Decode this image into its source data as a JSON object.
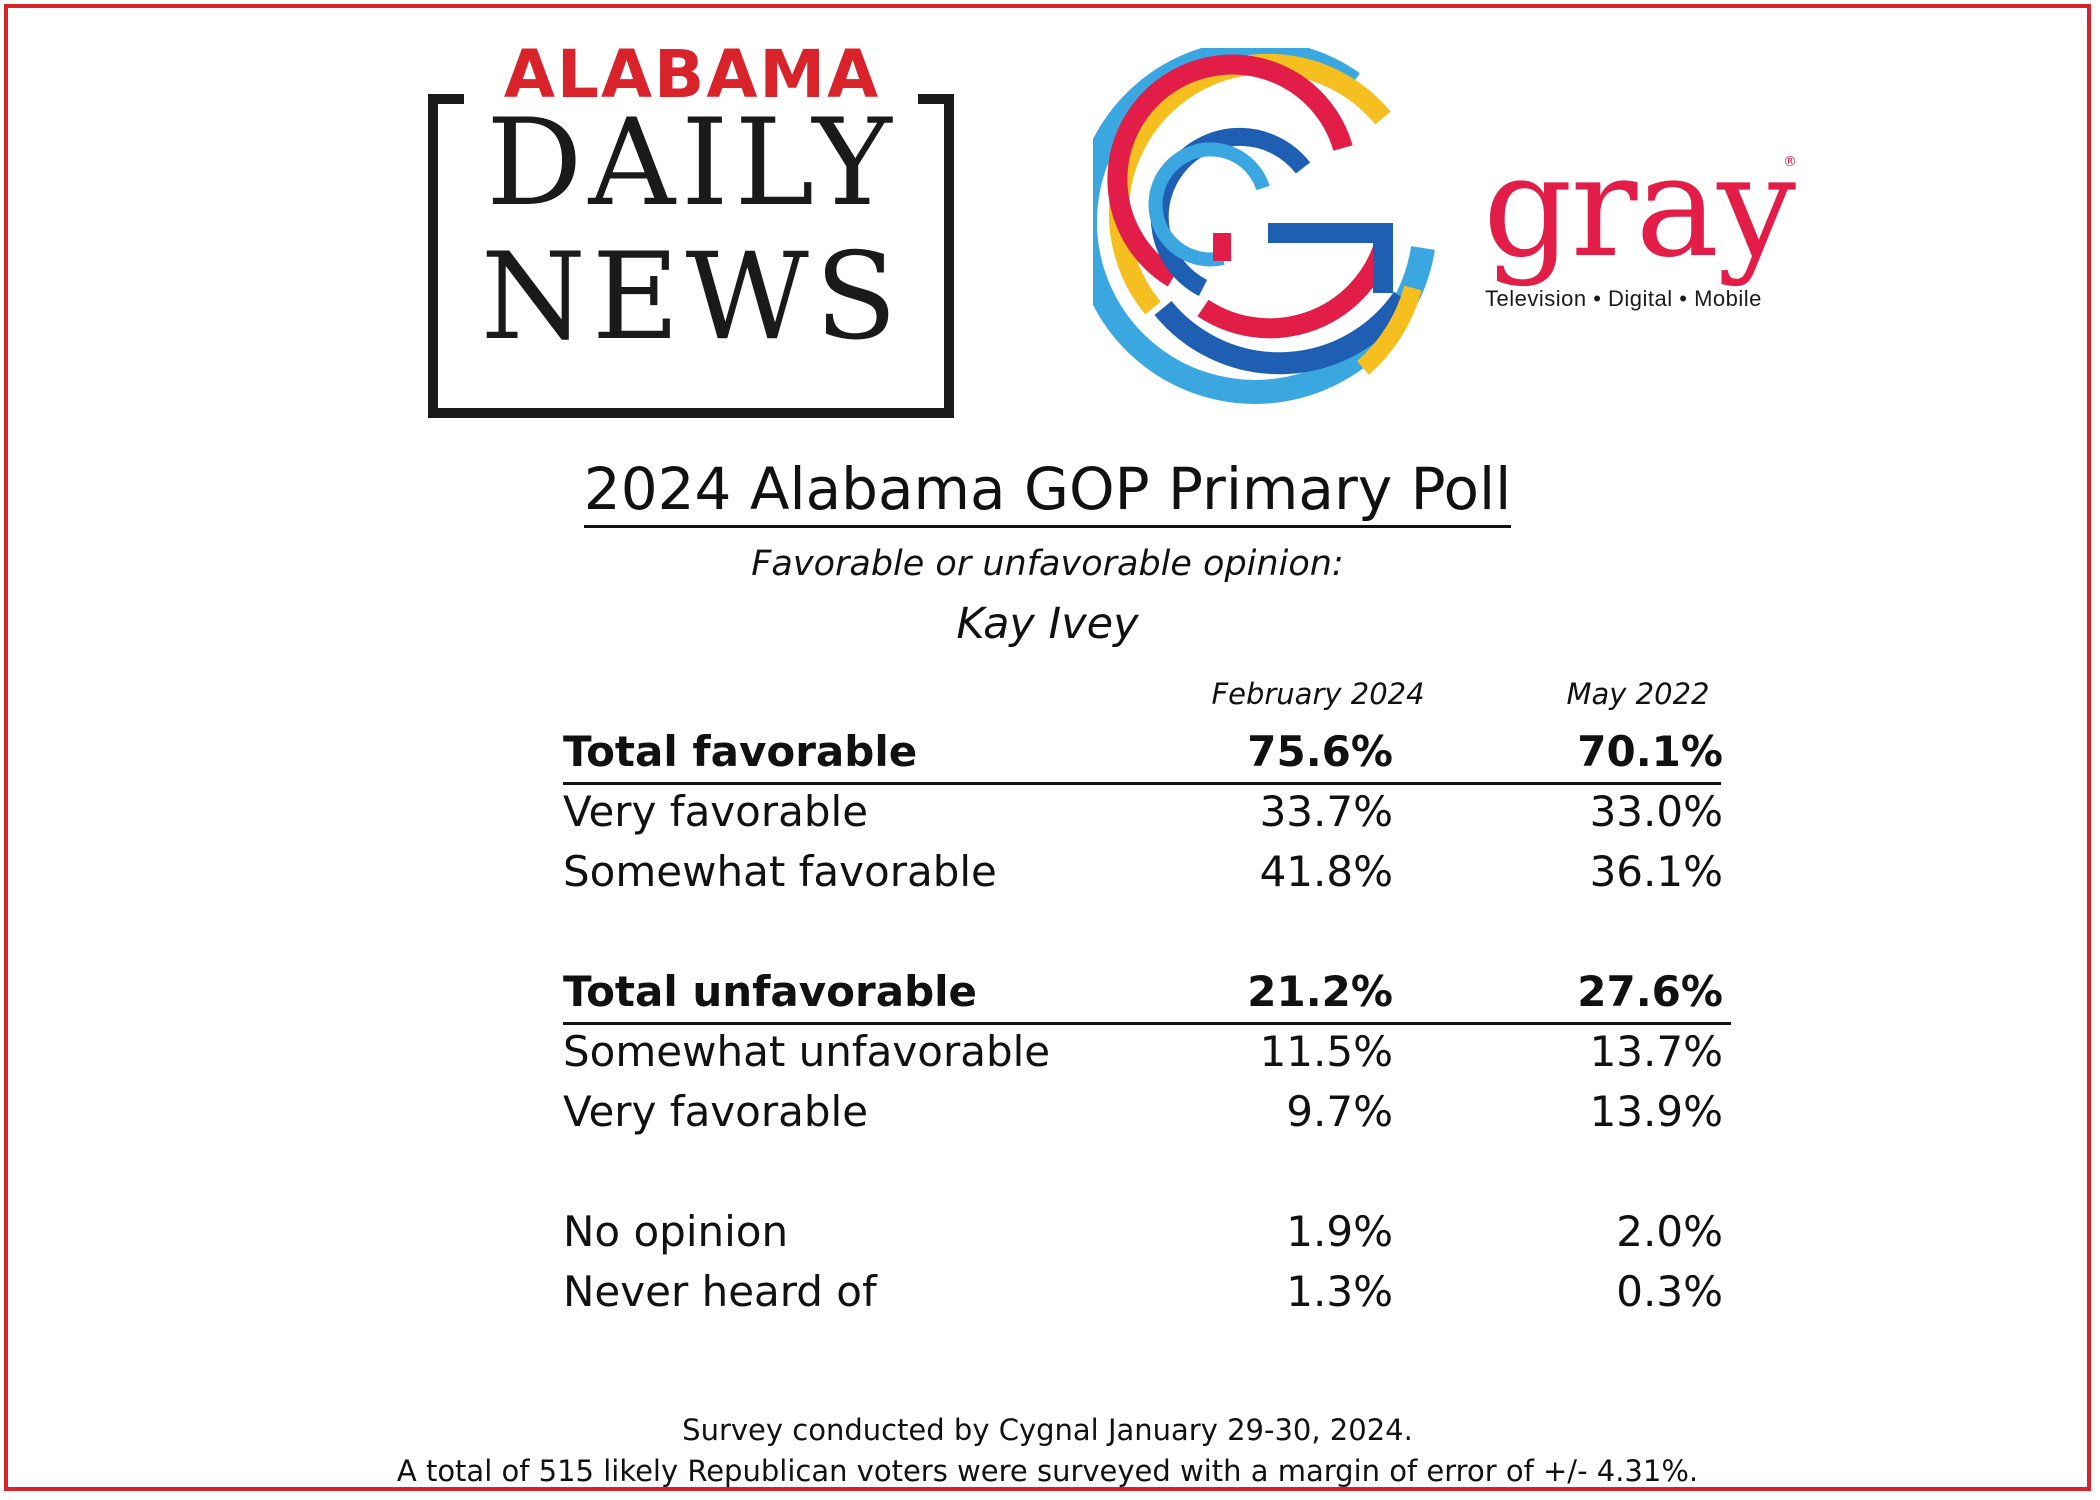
{
  "logos": {
    "alabama_daily_news": {
      "top": "ALABAMA",
      "line1": "DAILY",
      "line2": "NEWS"
    },
    "gray": {
      "word": "gray",
      "reg": "®",
      "tagline": "Television • Digital • Mobile"
    },
    "colors": {
      "red": "#e11d48",
      "yellow": "#f5bf1f",
      "blue": "#1e5fb3",
      "light_blue": "#3ba7e0",
      "frame": "#d8232a"
    }
  },
  "chart_data": {
    "type": "table",
    "title": "2024 Alabama GOP Primary Poll",
    "subtitle": "Favorable or unfavorable opinion:",
    "subject": "Kay Ivey",
    "columns": [
      "February 2024",
      "May 2022"
    ],
    "rows": [
      {
        "label": "Total favorable",
        "values": [
          "75.6%",
          "70.1%"
        ],
        "bold": true
      },
      {
        "label": "Very favorable",
        "values": [
          "33.7%",
          "33.0%"
        ],
        "bold": false
      },
      {
        "label": "Somewhat favorable",
        "values": [
          "41.8%",
          "36.1%"
        ],
        "bold": false
      },
      {
        "label": "Total unfavorable",
        "values": [
          "21.2%",
          "27.6%"
        ],
        "bold": true
      },
      {
        "label": "Somewhat unfavorable",
        "values": [
          "11.5%",
          "13.7%"
        ],
        "bold": false
      },
      {
        "label": "Very favorable",
        "values": [
          "9.7%",
          "13.9%"
        ],
        "bold": false
      },
      {
        "label": "No opinion",
        "values": [
          "1.9%",
          "2.0%"
        ],
        "bold": false
      },
      {
        "label": "Never heard of",
        "values": [
          "1.3%",
          "0.3%"
        ],
        "bold": false
      }
    ]
  },
  "footer": {
    "line1": "Survey conducted by Cygnal January 29-30, 2024.",
    "line2": "A total of 515 likely Republican voters were surveyed with a margin of error of +/- 4.31%."
  }
}
